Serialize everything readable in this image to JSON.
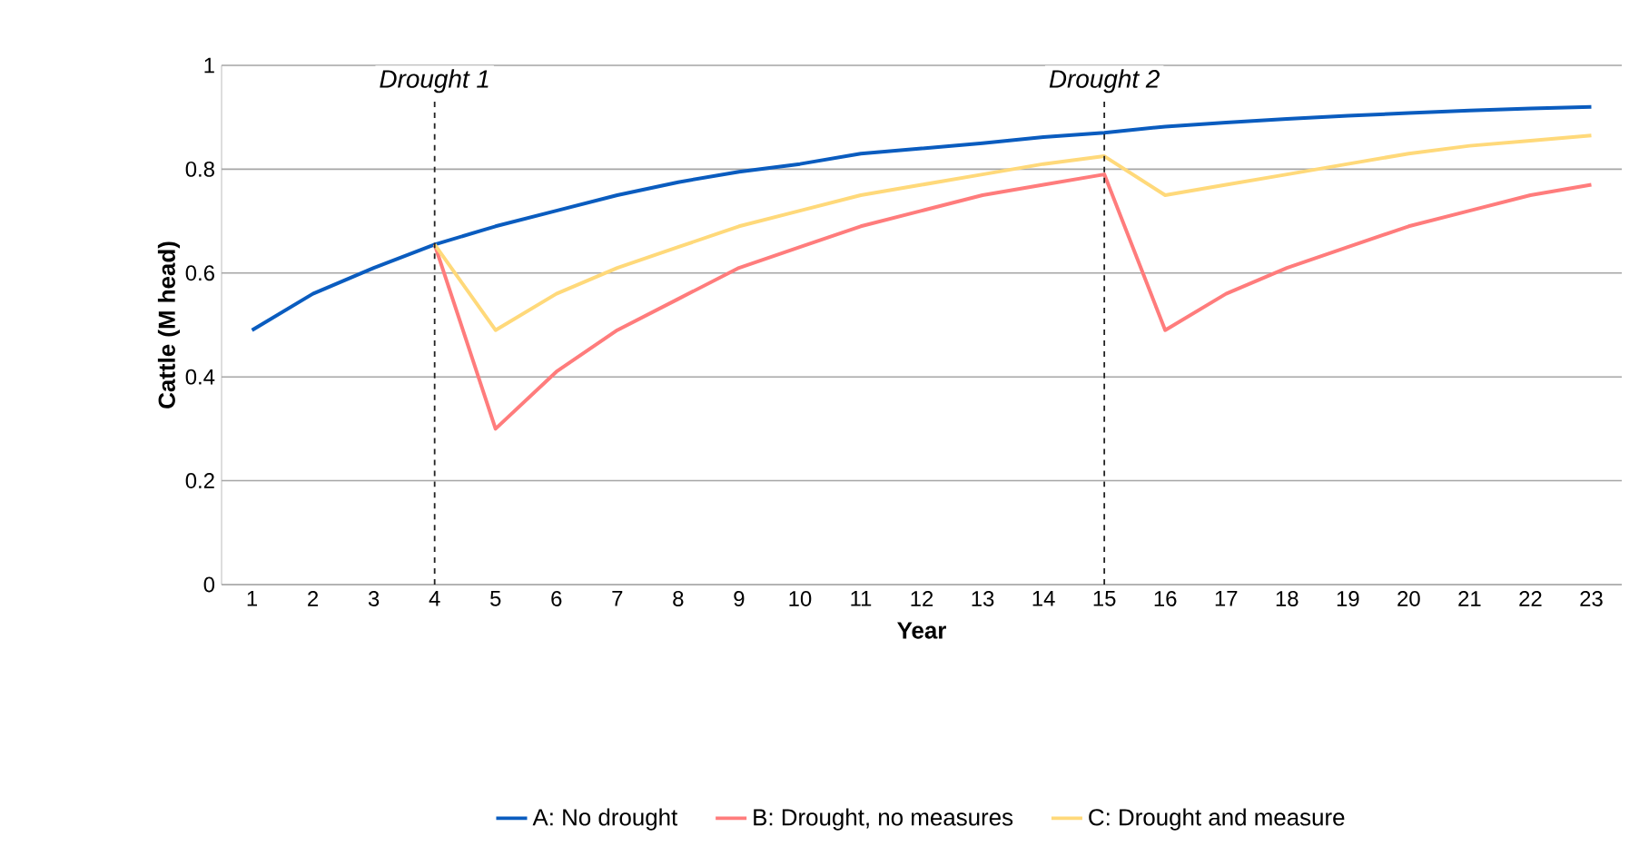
{
  "chart_data": {
    "type": "line",
    "xlabel": "Year",
    "ylabel": "Cattle (M head)",
    "x": [
      1,
      2,
      3,
      4,
      5,
      6,
      7,
      8,
      9,
      10,
      11,
      12,
      13,
      14,
      15,
      16,
      17,
      18,
      19,
      20,
      21,
      22,
      23
    ],
    "xlim": [
      0.5,
      23.5
    ],
    "xticks": [
      1,
      2,
      3,
      4,
      5,
      6,
      7,
      8,
      9,
      10,
      11,
      12,
      13,
      14,
      15,
      16,
      17,
      18,
      19,
      20,
      21,
      22,
      23
    ],
    "ylim": [
      0,
      1
    ],
    "yticks": [
      0,
      0.2,
      0.4,
      0.6,
      0.8,
      1
    ],
    "grid": "y",
    "legend": "bottom",
    "marker": "none",
    "line_style": "solid",
    "series": [
      {
        "name": "A: No drought",
        "color": "#0a5cbf",
        "values": [
          0.49,
          0.56,
          0.61,
          0.655,
          0.69,
          0.72,
          0.75,
          0.775,
          0.795,
          0.81,
          0.83,
          0.84,
          0.85,
          0.862,
          0.87,
          0.882,
          0.89,
          0.897,
          0.903,
          0.908,
          0.913,
          0.917,
          0.92
        ]
      },
      {
        "name": "B: Drought, no measures",
        "color": "#ff7c7c",
        "values": [
          null,
          null,
          null,
          0.655,
          0.3,
          0.41,
          0.49,
          0.55,
          0.61,
          0.65,
          0.69,
          0.72,
          0.75,
          0.77,
          0.79,
          0.49,
          0.56,
          0.61,
          0.65,
          0.69,
          0.72,
          0.75,
          0.77
        ]
      },
      {
        "name": "C: Drought and measure",
        "color": "#ffd97a",
        "values": [
          null,
          null,
          null,
          0.655,
          0.49,
          0.56,
          0.61,
          0.65,
          0.69,
          0.72,
          0.75,
          0.77,
          0.79,
          0.81,
          0.825,
          0.75,
          0.77,
          0.79,
          0.81,
          0.83,
          0.845,
          0.855,
          0.865
        ]
      }
    ],
    "ref_lines": [
      {
        "axis": "x",
        "value": 4,
        "label": "Drought 1",
        "color": "#222222",
        "line_style": "dashed"
      },
      {
        "axis": "x",
        "value": 15,
        "label": "Drought 2",
        "color": "#222222",
        "line_style": "dashed"
      }
    ]
  }
}
